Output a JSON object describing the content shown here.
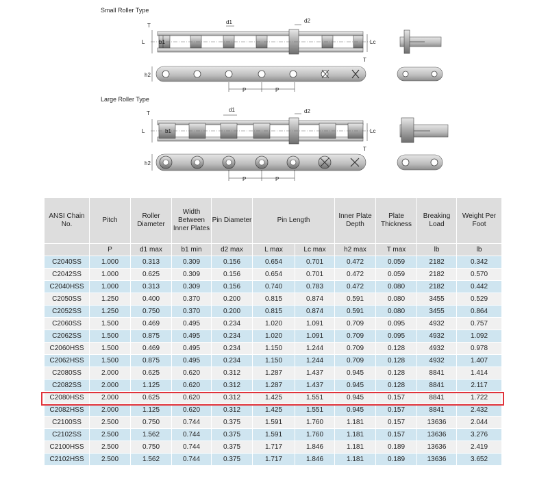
{
  "diagrams": {
    "small_title": "Small Roller Type",
    "large_title": "Large Roller Type",
    "labels": {
      "T": "T",
      "L": "L",
      "b1": "b1",
      "d1": "d1",
      "d2": "d2",
      "Lc": "Lc",
      "h2": "h2",
      "P": "P"
    }
  },
  "table": {
    "headers": [
      "ANSI Chain No.",
      "Pitch",
      "Roller Diameter",
      "Width Between Inner Plates",
      "Pin Diameter",
      "Pin Length",
      "Inner Plate Depth",
      "Plate Thickness",
      "Breaking Load",
      "Weight Per Foot"
    ],
    "subheaders": [
      "",
      "P",
      "d1 max",
      "b1 min",
      "d2 max",
      "L max",
      "Lc max",
      "h2 max",
      "T max",
      "lb",
      "lb"
    ],
    "rows": [
      [
        "C2040SS",
        "1.000",
        "0.313",
        "0.309",
        "0.156",
        "0.654",
        "0.701",
        "0.472",
        "0.059",
        "2182",
        "0.342"
      ],
      [
        "C2042SS",
        "1.000",
        "0.625",
        "0.309",
        "0.156",
        "0.654",
        "0.701",
        "0.472",
        "0.059",
        "2182",
        "0.570"
      ],
      [
        "C2040HSS",
        "1.000",
        "0.313",
        "0.309",
        "0.156",
        "0.740",
        "0.783",
        "0.472",
        "0.080",
        "2182",
        "0.442"
      ],
      [
        "C2050SS",
        "1.250",
        "0.400",
        "0.370",
        "0.200",
        "0.815",
        "0.874",
        "0.591",
        "0.080",
        "3455",
        "0.529"
      ],
      [
        "C2052SS",
        "1.250",
        "0.750",
        "0.370",
        "0.200",
        "0.815",
        "0.874",
        "0.591",
        "0.080",
        "3455",
        "0.864"
      ],
      [
        "C2060SS",
        "1.500",
        "0.469",
        "0.495",
        "0.234",
        "1.020",
        "1.091",
        "0.709",
        "0.095",
        "4932",
        "0.757"
      ],
      [
        "C2062SS",
        "1.500",
        "0.875",
        "0.495",
        "0.234",
        "1.020",
        "1.091",
        "0.709",
        "0.095",
        "4932",
        "1.092"
      ],
      [
        "C2060HSS",
        "1.500",
        "0.469",
        "0.495",
        "0.234",
        "1.150",
        "1.244",
        "0.709",
        "0.128",
        "4932",
        "0.978"
      ],
      [
        "C2062HSS",
        "1.500",
        "0.875",
        "0.495",
        "0.234",
        "1.150",
        "1.244",
        "0.709",
        "0.128",
        "4932",
        "1.407"
      ],
      [
        "C2080SS",
        "2.000",
        "0.625",
        "0.620",
        "0.312",
        "1.287",
        "1.437",
        "0.945",
        "0.128",
        "8841",
        "1.414"
      ],
      [
        "C2082SS",
        "2.000",
        "1.125",
        "0.620",
        "0.312",
        "1.287",
        "1.437",
        "0.945",
        "0.128",
        "8841",
        "2.117"
      ],
      [
        "C2080HSS",
        "2.000",
        "0.625",
        "0.620",
        "0.312",
        "1.425",
        "1.551",
        "0.945",
        "0.157",
        "8841",
        "1.722"
      ],
      [
        "C2082HSS",
        "2.000",
        "1.125",
        "0.620",
        "0.312",
        "1.425",
        "1.551",
        "0.945",
        "0.157",
        "8841",
        "2.432"
      ],
      [
        "C2100SS",
        "2.500",
        "0.750",
        "0.744",
        "0.375",
        "1.591",
        "1.760",
        "1.181",
        "0.157",
        "13636",
        "2.044"
      ],
      [
        "C2102SS",
        "2.500",
        "1.562",
        "0.744",
        "0.375",
        "1.591",
        "1.760",
        "1.181",
        "0.157",
        "13636",
        "3.276"
      ],
      [
        "C2100HSS",
        "2.500",
        "0.750",
        "0.744",
        "0.375",
        "1.717",
        "1.846",
        "1.181",
        "0.189",
        "13636",
        "2.419"
      ],
      [
        "C2102HSS",
        "2.500",
        "1.562",
        "0.744",
        "0.375",
        "1.717",
        "1.846",
        "1.181",
        "0.189",
        "13636",
        "3.652"
      ]
    ],
    "highlighted_row": "C2080HSS",
    "highlight_color": "#e0323a"
  }
}
